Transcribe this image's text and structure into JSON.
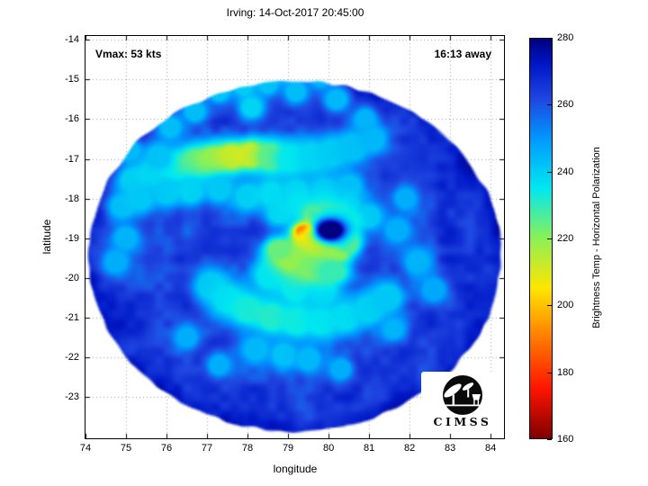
{
  "title": "Irving: 14-Oct-2017 20:45:00",
  "plot": {
    "vmax_label": "Vmax: 53 kts",
    "eta_label": "16:13 away",
    "xlabel": "longitude",
    "ylabel": "latitude"
  },
  "colorbar": {
    "label": "Brightness Temp - Horizontal Polarization",
    "min": 160,
    "max": 280,
    "ticks": [
      160,
      180,
      200,
      220,
      240,
      260,
      280
    ],
    "stops": [
      {
        "value": 160,
        "color": "#7f0000"
      },
      {
        "value": 175,
        "color": "#ff1400"
      },
      {
        "value": 190,
        "color": "#ff7a00"
      },
      {
        "value": 205,
        "color": "#ffe600"
      },
      {
        "value": 220,
        "color": "#8cf055"
      },
      {
        "value": 235,
        "color": "#00e8f0"
      },
      {
        "value": 250,
        "color": "#0098ff"
      },
      {
        "value": 262,
        "color": "#1f45e0"
      },
      {
        "value": 272,
        "color": "#0018c8"
      },
      {
        "value": 280,
        "color": "#000082"
      }
    ]
  },
  "logo": {
    "text": "CIMSS"
  },
  "chart_data": {
    "type": "heatmap",
    "title": "Irving: 14-Oct-2017 20:45:00",
    "xlabel": "longitude",
    "ylabel": "latitude",
    "xlim": [
      74,
      84.33
    ],
    "ylim": [
      -24.05,
      -13.9
    ],
    "xticks": [
      74,
      75,
      76,
      77,
      78,
      79,
      80,
      81,
      82,
      83,
      84
    ],
    "yticks": [
      -14,
      -15,
      -16,
      -17,
      -18,
      -19,
      -20,
      -21,
      -22,
      -23
    ],
    "grid": true,
    "legend_position": "right-colorbar",
    "value_label": "Brightness Temp - Horizontal Polarization",
    "value_range": [
      160,
      280
    ],
    "storm": {
      "name": "Irving",
      "time": "14-Oct-2017 20:45:00",
      "vmax_kts": 53,
      "eta": "16:13 away",
      "eye_lon": 80.05,
      "eye_lat": -18.8,
      "eye_temp": 280,
      "min_band_temp": 185
    },
    "swath": {
      "center_lon": 79.16,
      "center_lat": -19.45,
      "rx_deg": 5.11,
      "ry_deg": 4.43,
      "base_temp": 261,
      "edge_temp": 267,
      "rim_boost": 55,
      "noise_amp": [
        9,
        7
      ]
    },
    "blobs": [
      [
        75.2,
        -17.55,
        240
      ],
      [
        75.7,
        -17.35,
        237
      ],
      [
        76.2,
        -17.2,
        231
      ],
      [
        76.7,
        -17.1,
        226
      ],
      [
        77.15,
        -17.05,
        220
      ],
      [
        77.6,
        -16.95,
        213,
        0.26
      ],
      [
        78.1,
        -16.9,
        210,
        0.26
      ],
      [
        78.6,
        -16.95,
        224
      ],
      [
        79.1,
        -17.0,
        234
      ],
      [
        79.6,
        -16.95,
        238
      ],
      [
        80.1,
        -16.85,
        240
      ],
      [
        80.6,
        -16.7,
        242
      ],
      [
        81.1,
        -16.5,
        244,
        0.26
      ],
      [
        76.0,
        -17.85,
        241,
        0.26
      ],
      [
        76.6,
        -17.8,
        239,
        0.26
      ],
      [
        77.3,
        -17.75,
        241,
        0.26
      ],
      [
        78.0,
        -17.95,
        240,
        0.26
      ],
      [
        78.6,
        -17.88,
        237,
        0.26
      ],
      [
        79.2,
        -17.82,
        239,
        0.26
      ],
      [
        79.9,
        -17.78,
        241,
        0.26
      ],
      [
        80.5,
        -17.7,
        243,
        0.26
      ],
      [
        77.3,
        -15.3,
        242,
        0.22
      ],
      [
        77.9,
        -15.15,
        241,
        0.22
      ],
      [
        78.5,
        -15.1,
        242,
        0.22
      ],
      [
        79.2,
        -15.3,
        243,
        0.22
      ],
      [
        78.1,
        -15.7,
        239,
        0.22
      ],
      [
        80.2,
        -15.5,
        244,
        0.22
      ],
      [
        76.7,
        -15.8,
        243,
        0.22
      ],
      [
        76.1,
        -16.2,
        243,
        0.22
      ],
      [
        80.9,
        -16.0,
        245,
        0.22
      ],
      [
        79.8,
        -14.95,
        245,
        0.22
      ],
      [
        78.9,
        -14.85,
        244,
        0.2
      ],
      [
        74.9,
        -18.2,
        243,
        0.25
      ],
      [
        75.35,
        -18.0,
        241,
        0.25
      ],
      [
        75.0,
        -19.0,
        245,
        0.25
      ],
      [
        74.75,
        -19.6,
        246,
        0.25
      ],
      [
        75.8,
        -16.95,
        242,
        0.25
      ],
      [
        75.1,
        -16.8,
        244,
        0.22
      ],
      [
        81.7,
        -18.8,
        246,
        0.25
      ],
      [
        82.2,
        -19.6,
        245,
        0.25
      ],
      [
        81.9,
        -18.0,
        246,
        0.22
      ],
      [
        82.6,
        -20.3,
        247,
        0.25
      ],
      [
        77.1,
        -20.2,
        241
      ],
      [
        77.5,
        -20.55,
        237
      ],
      [
        78.0,
        -20.8,
        233
      ],
      [
        78.6,
        -21.0,
        231
      ],
      [
        79.2,
        -21.1,
        233
      ],
      [
        79.8,
        -21.1,
        235
      ],
      [
        80.4,
        -21.0,
        237
      ],
      [
        81.0,
        -20.8,
        239
      ],
      [
        81.45,
        -20.5,
        241
      ],
      [
        78.2,
        -21.8,
        244,
        0.25
      ],
      [
        78.9,
        -21.95,
        242,
        0.25
      ],
      [
        79.5,
        -22.05,
        244,
        0.25
      ],
      [
        76.5,
        -21.5,
        246,
        0.22
      ],
      [
        77.3,
        -22.2,
        246,
        0.22
      ],
      [
        80.3,
        -22.3,
        246,
        0.22
      ],
      [
        81.6,
        -21.3,
        245,
        0.22
      ],
      [
        78.9,
        -19.65,
        228
      ],
      [
        78.55,
        -19.95,
        236
      ],
      [
        79.2,
        -20.25,
        234
      ],
      [
        79.85,
        -20.35,
        238
      ],
      [
        78.8,
        -18.35,
        238,
        0.25
      ],
      [
        79.3,
        -18.15,
        236,
        0.25
      ],
      [
        79.9,
        -18.1,
        237,
        0.25
      ],
      [
        80.5,
        -18.2,
        239,
        0.25
      ],
      [
        81.0,
        -18.45,
        241,
        0.25
      ],
      [
        80.5,
        -18.95,
        230,
        0.2
      ],
      [
        80.55,
        -18.6,
        232,
        0.18
      ],
      [
        80.3,
        -18.35,
        233,
        0.18
      ],
      [
        79.95,
        -18.3,
        231,
        0.18
      ],
      [
        79.6,
        -18.4,
        227,
        0.18
      ],
      [
        79.42,
        -18.85,
        185,
        0.2,
        0.16
      ],
      [
        79.45,
        -19.12,
        200,
        0.24,
        0.2
      ],
      [
        79.75,
        -19.32,
        206,
        0.3,
        0.22
      ],
      [
        80.15,
        -19.38,
        214,
        0.28,
        0.2
      ],
      [
        80.5,
        -19.15,
        226,
        0.2,
        0.18
      ],
      [
        79.1,
        -19.5,
        216,
        0.3,
        0.24
      ],
      [
        78.78,
        -19.28,
        224,
        0.25,
        0.2
      ],
      [
        79.6,
        -19.75,
        221,
        0.33,
        0.25
      ],
      [
        80.1,
        -19.85,
        229,
        0.3,
        0.22
      ],
      [
        80.05,
        -18.8,
        281,
        0.26,
        0.19
      ]
    ]
  }
}
